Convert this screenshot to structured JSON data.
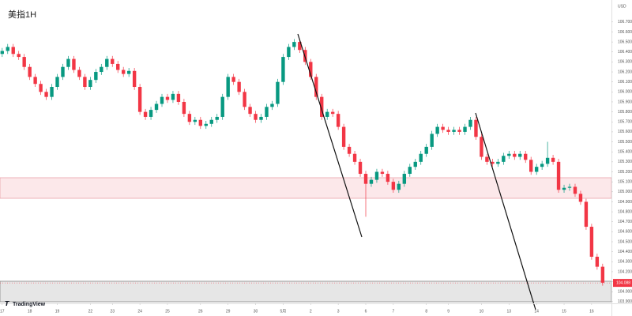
{
  "chart_data": {
    "type": "candlestick",
    "title": "美指1H",
    "y_unit": "USD",
    "brand": "TradingView",
    "up_color": "#089981",
    "down_color": "#f23645",
    "ylim": [
      103.82,
      106.92
    ],
    "yticks": [
      {
        "value": 103.9,
        "label": "103.900"
      },
      {
        "value": 104.0,
        "label": "104.000"
      },
      {
        "value": 104.1,
        "label": "104.100"
      },
      {
        "value": 104.2,
        "label": "104.200"
      },
      {
        "value": 104.3,
        "label": "104.300"
      },
      {
        "value": 104.4,
        "label": "104.400"
      },
      {
        "value": 104.5,
        "label": "104.500"
      },
      {
        "value": 104.6,
        "label": "104.600"
      },
      {
        "value": 104.7,
        "label": "104.700"
      },
      {
        "value": 104.8,
        "label": "104.800"
      },
      {
        "value": 104.9,
        "label": "104.900"
      },
      {
        "value": 105.0,
        "label": "105.000"
      },
      {
        "value": 105.1,
        "label": "105.100"
      },
      {
        "value": 105.2,
        "label": "105.200"
      },
      {
        "value": 105.3,
        "label": "105.300"
      },
      {
        "value": 105.4,
        "label": "105.400"
      },
      {
        "value": 105.5,
        "label": "105.500"
      },
      {
        "value": 105.6,
        "label": "105.600"
      },
      {
        "value": 105.7,
        "label": "105.700"
      },
      {
        "value": 105.8,
        "label": "105.800"
      },
      {
        "value": 105.9,
        "label": "105.900"
      },
      {
        "value": 106.0,
        "label": "106.000"
      },
      {
        "value": 106.1,
        "label": "106.100"
      },
      {
        "value": 106.2,
        "label": "106.200"
      },
      {
        "value": 106.3,
        "label": "106.300"
      },
      {
        "value": 106.4,
        "label": "106.400"
      },
      {
        "value": 106.5,
        "label": "106.500"
      },
      {
        "value": 106.6,
        "label": "106.600"
      },
      {
        "value": 106.7,
        "label": "106.700"
      }
    ],
    "xlim": [
      -0.4,
      110.6
    ],
    "xticks": [
      {
        "value": 0,
        "label": "17"
      },
      {
        "value": 5,
        "label": "18"
      },
      {
        "value": 10,
        "label": "19"
      },
      {
        "value": 16,
        "label": "22"
      },
      {
        "value": 20,
        "label": "23"
      },
      {
        "value": 25,
        "label": "24"
      },
      {
        "value": 30,
        "label": "25"
      },
      {
        "value": 36,
        "label": "26"
      },
      {
        "value": 41,
        "label": "29"
      },
      {
        "value": 46,
        "label": "30"
      },
      {
        "value": 51,
        "label": "5月"
      },
      {
        "value": 56,
        "label": "2"
      },
      {
        "value": 61,
        "label": "3"
      },
      {
        "value": 66,
        "label": "6"
      },
      {
        "value": 71,
        "label": "7"
      },
      {
        "value": 77,
        "label": "8"
      },
      {
        "value": 81,
        "label": "9"
      },
      {
        "value": 87,
        "label": "10"
      },
      {
        "value": 92,
        "label": "13"
      },
      {
        "value": 97,
        "label": "14"
      },
      {
        "value": 102,
        "label": "15"
      },
      {
        "value": 107,
        "label": "16"
      }
    ],
    "last_price": 104.088,
    "open": [
      106.38,
      106.41,
      106.45,
      106.38,
      106.35,
      106.25,
      106.15,
      106.08,
      106.0,
      105.95,
      106.05,
      106.15,
      106.25,
      106.33,
      106.22,
      106.15,
      106.05,
      106.12,
      106.2,
      106.25,
      106.33,
      106.28,
      106.22,
      106.18,
      106.21,
      106.05,
      105.8,
      105.75,
      105.82,
      105.88,
      105.95,
      105.92,
      105.98,
      105.9,
      105.78,
      105.7,
      105.72,
      105.66,
      105.68,
      105.72,
      105.75,
      105.95,
      106.15,
      106.1,
      106.0,
      105.85,
      105.78,
      105.72,
      105.75,
      105.85,
      105.88,
      106.1,
      106.35,
      106.45,
      106.5,
      106.42,
      106.3,
      106.15,
      105.95,
      105.75,
      105.8,
      105.78,
      105.65,
      105.45,
      105.38,
      105.3,
      105.18,
      105.08,
      105.12,
      105.2,
      105.18,
      105.1,
      105.02,
      105.08,
      105.18,
      105.25,
      105.3,
      105.38,
      105.45,
      105.58,
      105.65,
      105.62,
      105.6,
      105.62,
      105.6,
      105.65,
      105.72,
      105.55,
      105.35,
      105.3,
      105.28,
      105.3,
      105.36,
      105.38,
      105.35,
      105.38,
      105.32,
      105.2,
      105.25,
      105.28,
      105.34,
      105.3,
      105.02,
      105.04,
      105.05,
      104.98,
      104.9,
      104.65,
      104.35,
      104.25
    ],
    "high": [
      106.44,
      106.48,
      106.48,
      106.41,
      106.38,
      106.28,
      106.18,
      106.11,
      106.03,
      106.08,
      106.18,
      106.28,
      106.36,
      106.36,
      106.25,
      106.18,
      106.15,
      106.23,
      106.28,
      106.36,
      106.36,
      106.31,
      106.25,
      106.24,
      106.24,
      106.08,
      105.83,
      105.85,
      105.91,
      105.98,
      105.98,
      106.01,
      106.01,
      105.93,
      105.81,
      105.75,
      105.75,
      105.71,
      105.75,
      105.78,
      105.98,
      106.18,
      106.18,
      106.13,
      106.03,
      105.88,
      105.81,
      105.78,
      105.88,
      105.91,
      106.13,
      106.38,
      106.48,
      106.53,
      106.53,
      106.45,
      106.33,
      106.18,
      105.98,
      105.83,
      105.83,
      105.81,
      105.68,
      105.48,
      105.41,
      105.33,
      105.21,
      105.15,
      105.23,
      105.23,
      105.21,
      105.13,
      105.11,
      105.21,
      105.28,
      105.33,
      105.41,
      105.48,
      105.61,
      105.68,
      105.68,
      105.65,
      105.65,
      105.65,
      105.68,
      105.75,
      105.75,
      105.58,
      105.38,
      105.33,
      105.33,
      105.39,
      105.41,
      105.41,
      105.41,
      105.41,
      105.35,
      105.28,
      105.31,
      105.5,
      105.37,
      105.33,
      105.07,
      105.08,
      105.08,
      105.01,
      104.93,
      104.68,
      104.38,
      104.28
    ],
    "low": [
      106.35,
      106.38,
      106.35,
      106.32,
      106.22,
      106.12,
      106.05,
      105.97,
      105.92,
      105.92,
      106.02,
      106.12,
      106.22,
      106.19,
      106.12,
      106.02,
      106.02,
      106.09,
      106.17,
      106.22,
      106.25,
      106.19,
      106.15,
      106.15,
      106.02,
      105.77,
      105.72,
      105.72,
      105.79,
      105.85,
      105.89,
      105.89,
      105.87,
      105.75,
      105.67,
      105.67,
      105.63,
      105.63,
      105.65,
      105.69,
      105.72,
      105.92,
      106.07,
      105.97,
      105.82,
      105.75,
      105.69,
      105.69,
      105.72,
      105.82,
      105.85,
      106.07,
      106.32,
      106.42,
      106.39,
      106.27,
      106.12,
      105.92,
      105.72,
      105.72,
      105.75,
      105.62,
      105.42,
      105.35,
      105.27,
      105.15,
      104.75,
      105.05,
      105.09,
      105.15,
      105.07,
      104.99,
      104.99,
      105.05,
      105.15,
      105.22,
      105.27,
      105.35,
      105.42,
      105.55,
      105.59,
      105.57,
      105.57,
      105.57,
      105.57,
      105.62,
      105.52,
      105.32,
      105.27,
      105.25,
      105.25,
      105.27,
      105.33,
      105.32,
      105.32,
      105.29,
      105.17,
      105.17,
      105.22,
      105.25,
      105.27,
      104.99,
      104.99,
      105.01,
      104.95,
      104.87,
      104.62,
      104.32,
      104.22,
      104.06
    ],
    "close": [
      106.41,
      106.45,
      106.38,
      106.35,
      106.25,
      106.15,
      106.08,
      106.0,
      105.95,
      106.05,
      106.15,
      106.25,
      106.33,
      106.22,
      106.15,
      106.05,
      106.12,
      106.2,
      106.25,
      106.33,
      106.28,
      106.22,
      106.18,
      106.21,
      106.05,
      105.8,
      105.75,
      105.82,
      105.88,
      105.95,
      105.92,
      105.98,
      105.9,
      105.78,
      105.7,
      105.72,
      105.66,
      105.68,
      105.72,
      105.75,
      105.95,
      106.15,
      106.1,
      106.0,
      105.85,
      105.78,
      105.72,
      105.75,
      105.85,
      105.88,
      106.1,
      106.35,
      106.45,
      106.5,
      106.42,
      106.3,
      106.15,
      105.95,
      105.75,
      105.8,
      105.78,
      105.65,
      105.45,
      105.38,
      105.3,
      105.18,
      105.08,
      105.12,
      105.2,
      105.18,
      105.1,
      105.02,
      105.08,
      105.18,
      105.25,
      105.3,
      105.38,
      105.45,
      105.58,
      105.65,
      105.62,
      105.6,
      105.62,
      105.6,
      105.65,
      105.72,
      105.55,
      105.35,
      105.3,
      105.28,
      105.3,
      105.36,
      105.38,
      105.35,
      105.38,
      105.32,
      105.2,
      105.25,
      105.28,
      105.34,
      105.3,
      105.02,
      105.04,
      105.05,
      104.98,
      104.9,
      104.65,
      104.35,
      104.25,
      104.09
    ]
  }
}
